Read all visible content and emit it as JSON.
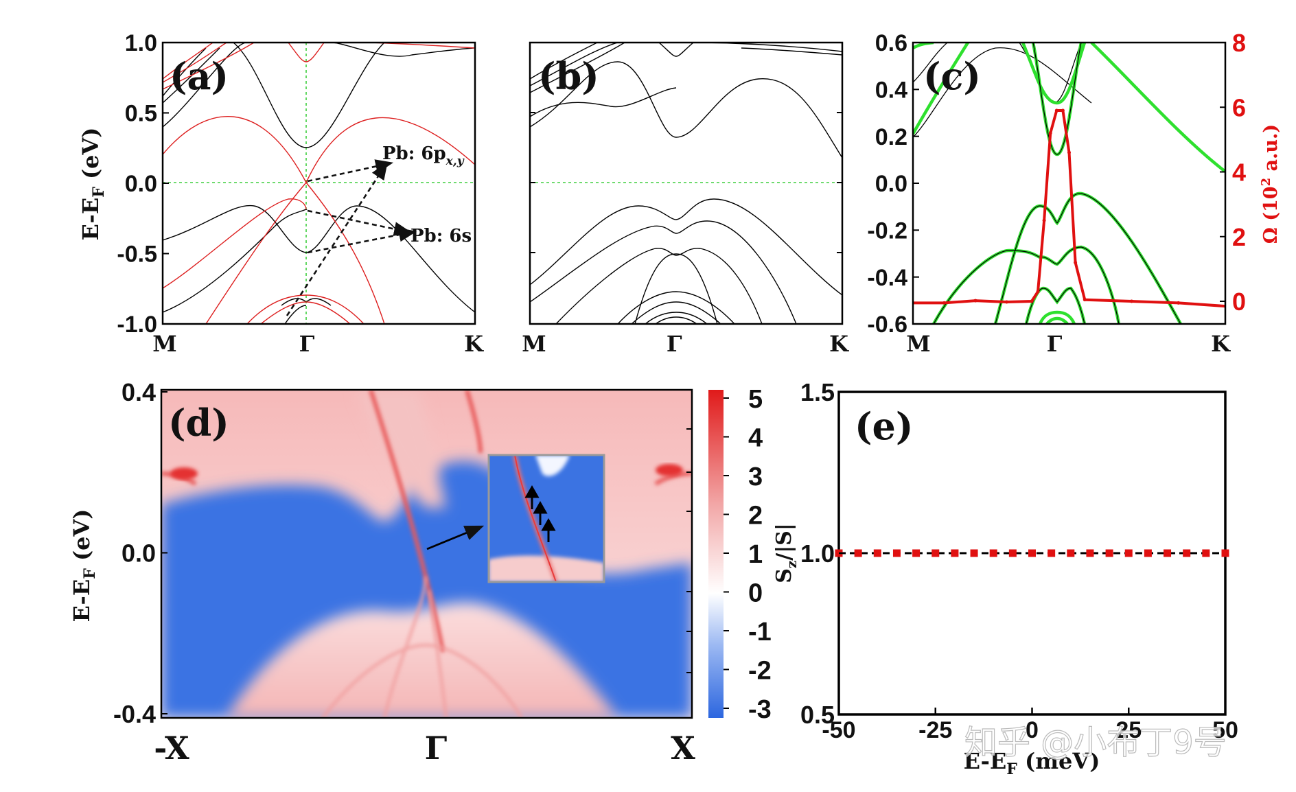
{
  "chart_data": [
    {
      "id": "a",
      "type": "line",
      "panel_label": "(a)",
      "ylabel": "E-E",
      "ylabel_sub": "F",
      "ylabel_unit": " (eV)",
      "ylim": [
        -1.0,
        1.0
      ],
      "yticks": [
        "1.0",
        "0.5",
        "0.0",
        "-0.5",
        "-1.0"
      ],
      "ytick_values": [
        1.0,
        0.5,
        0.0,
        -0.5,
        -1.0
      ],
      "xticks": [
        "M",
        "Γ",
        "K"
      ],
      "xtick_positions": [
        0,
        0.46,
        1
      ],
      "series": [
        {
          "name": "black bands",
          "color": "#000000",
          "description": "band structure without SOC"
        },
        {
          "name": "red bands",
          "color": "#dd1f1f",
          "description": "band structure with SOC"
        }
      ],
      "fermi_level": 0.0,
      "annotations": [
        {
          "text": "Pb: 6p",
          "sub": "x,y",
          "from": [
            0.46,
            0.0
          ],
          "to": [
            0.72,
            0.15
          ]
        },
        {
          "text": "Pb: 6s",
          "from": [
            0.46,
            -0.2
          ],
          "to": [
            0.79,
            -0.36
          ]
        }
      ]
    },
    {
      "id": "b",
      "type": "line",
      "panel_label": "(b)",
      "ylim": [
        -1.0,
        1.0
      ],
      "xticks": [
        "M",
        "Γ",
        "K"
      ],
      "xtick_positions": [
        0,
        0.46,
        1
      ],
      "series": [
        {
          "name": "bands",
          "color": "#000000"
        }
      ],
      "fermi_level": 0.0
    },
    {
      "id": "c",
      "type": "line",
      "panel_label": "(c)",
      "ylim": [
        -0.6,
        0.6
      ],
      "yticks": [
        "0.6",
        "0.4",
        "0.2",
        "0.0",
        "-0.2",
        "-0.4",
        "-0.6"
      ],
      "ytick_values": [
        0.6,
        0.4,
        0.2,
        0.0,
        -0.2,
        -0.4,
        -0.6
      ],
      "y2label": "Ω (10",
      "y2label_sup": "2",
      "y2label_unit": " a.u.)",
      "y2lim": [
        -0.7,
        8
      ],
      "y2ticks": [
        "8",
        "6",
        "4",
        "2",
        "0"
      ],
      "y2tick_values": [
        8,
        6,
        4,
        2,
        0
      ],
      "xticks": [
        "M",
        "Γ",
        "K"
      ],
      "xtick_positions": [
        0,
        0.45,
        1
      ],
      "series": [
        {
          "name": "bands (black)",
          "color": "#000000"
        },
        {
          "name": "bands (green)",
          "color": "#2ee02e"
        },
        {
          "name": "Berry curvature Ω",
          "color": "#e01010",
          "axis": "right",
          "x": [
            0,
            0.1,
            0.2,
            0.3,
            0.38,
            0.4,
            0.42,
            0.44,
            0.46,
            0.48,
            0.5,
            0.52,
            0.55,
            0.7,
            0.85,
            1
          ],
          "y": [
            -0.05,
            -0.05,
            0.02,
            -0.02,
            0.0,
            0.3,
            2.5,
            5.2,
            5.9,
            5.9,
            4.6,
            1.2,
            0.05,
            0.0,
            -0.05,
            -0.15
          ]
        }
      ]
    },
    {
      "id": "d",
      "type": "heatmap",
      "panel_label": "(d)",
      "ylabel": "E-E",
      "ylabel_sub": "F",
      "ylabel_unit": " (eV)",
      "ylim": [
        -0.4,
        0.4
      ],
      "yticks": [
        "0.4",
        "0.0",
        "-0.4"
      ],
      "ytick_values": [
        0.4,
        0.0,
        -0.4
      ],
      "xticks": [
        "-X",
        "Γ",
        "X"
      ],
      "colorbar": {
        "ticks": [
          "5",
          "4",
          "3",
          "2",
          "1",
          "0",
          "-1",
          "-2",
          "-3"
        ],
        "tick_values": [
          5,
          4,
          3,
          2,
          1,
          0,
          -1,
          -2,
          -3
        ],
        "colors": [
          "#e32222",
          "#ffffff",
          "#2e6de0"
        ]
      },
      "inset": {
        "description": "zoom of edge state with spin arrows",
        "arrow_count": 3
      }
    },
    {
      "id": "e",
      "type": "line",
      "panel_label": "(e)",
      "ylabel": "S",
      "ylabel_sub": "z",
      "ylabel_unit": "/|S|",
      "xlabel": "E-E",
      "xlabel_sub": "F",
      "xlabel_unit": " (meV)",
      "xlim": [
        -50,
        50
      ],
      "ylim": [
        0.5,
        1.5
      ],
      "xticks": [
        "-50",
        "-25",
        "0",
        "25",
        "50"
      ],
      "xtick_values": [
        -50,
        -25,
        0,
        25,
        50
      ],
      "yticks": [
        "1.5",
        "1.0",
        "0.5"
      ],
      "ytick_values": [
        1.5,
        1.0,
        0.5
      ],
      "series": [
        {
          "name": "Sz/|S|",
          "color": "#e01010",
          "marker": "square",
          "x": [
            -50,
            -45,
            -40,
            -35,
            -30,
            -25,
            -20,
            -15,
            -10,
            -5,
            0,
            5,
            10,
            15,
            20,
            25,
            30,
            35,
            40,
            45,
            50
          ],
          "y": [
            1,
            1,
            1,
            1,
            1,
            1,
            1,
            1,
            1,
            1,
            1,
            1,
            1,
            1,
            1,
            1,
            1,
            1,
            1,
            1,
            1
          ]
        },
        {
          "name": "reference",
          "color": "#000000",
          "style": "dashed",
          "x": [
            -50,
            50
          ],
          "y": [
            1,
            1
          ]
        }
      ]
    }
  ],
  "watermark": "知乎 @小布丁9号"
}
